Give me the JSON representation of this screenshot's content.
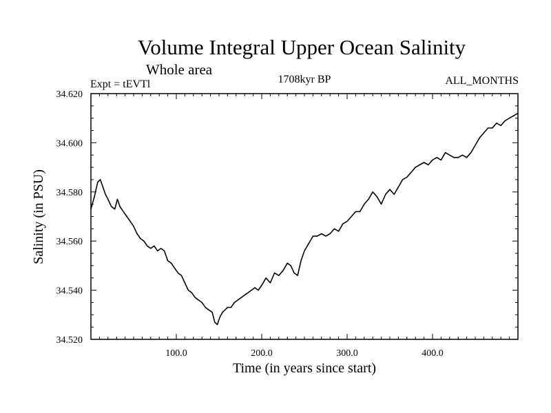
{
  "chart_data": {
    "type": "line",
    "title": "Volume Integral Upper Ocean Salinity",
    "subtitle": "Whole area",
    "left_note": "Expt = tEVTl",
    "center_note": "1708kyr BP",
    "right_note": "ALL_MONTHS",
    "xlabel": "Time (in years since start)",
    "ylabel": "Salinity (in PSU)",
    "xlim": [
      0,
      500
    ],
    "ylim": [
      34.52,
      34.62
    ],
    "xticks": [
      100,
      200,
      300,
      400
    ],
    "xtick_labels": [
      "100.0",
      "200.0",
      "300.0",
      "400.0"
    ],
    "yticks": [
      34.52,
      34.54,
      34.56,
      34.58,
      34.6,
      34.62
    ],
    "ytick_labels": [
      "34.520",
      "34.540",
      "34.560",
      "34.580",
      "34.600",
      "34.620"
    ],
    "grid": false,
    "series": [
      {
        "name": "Salinity",
        "x": [
          0,
          4,
          8,
          11,
          14,
          17,
          20,
          24,
          28,
          31,
          34,
          38,
          42,
          46,
          50,
          54,
          58,
          62,
          66,
          70,
          74,
          78,
          82,
          86,
          90,
          94,
          98,
          102,
          106,
          110,
          114,
          118,
          122,
          126,
          130,
          134,
          138,
          142,
          145,
          148,
          151,
          154,
          157,
          160,
          164,
          168,
          172,
          176,
          180,
          184,
          188,
          192,
          196,
          200,
          205,
          210,
          215,
          220,
          225,
          230,
          234,
          238,
          242,
          246,
          250,
          255,
          260,
          265,
          270,
          275,
          280,
          285,
          290,
          295,
          300,
          305,
          310,
          315,
          320,
          325,
          330,
          335,
          340,
          345,
          350,
          355,
          360,
          365,
          370,
          375,
          380,
          385,
          390,
          395,
          400,
          405,
          410,
          415,
          420,
          425,
          430,
          435,
          440,
          445,
          450,
          455,
          460,
          465,
          470,
          475,
          480,
          485,
          490,
          495,
          500
        ],
        "y": [
          34.573,
          34.578,
          34.584,
          34.585,
          34.582,
          34.579,
          34.577,
          34.574,
          34.573,
          34.577,
          34.574,
          34.572,
          34.57,
          34.568,
          34.566,
          34.563,
          34.561,
          34.56,
          34.558,
          34.557,
          34.558,
          34.556,
          34.557,
          34.556,
          34.552,
          34.551,
          34.549,
          34.547,
          34.546,
          34.543,
          34.54,
          34.539,
          34.537,
          34.536,
          34.535,
          34.533,
          34.532,
          34.531,
          34.527,
          34.526,
          34.529,
          34.531,
          34.532,
          34.533,
          34.533,
          34.535,
          34.536,
          34.537,
          34.538,
          34.539,
          34.54,
          34.541,
          34.54,
          34.542,
          34.545,
          34.543,
          34.547,
          34.546,
          34.548,
          34.551,
          34.55,
          34.547,
          34.546,
          34.552,
          34.556,
          34.559,
          34.562,
          34.562,
          34.563,
          34.562,
          34.563,
          34.565,
          34.564,
          34.567,
          34.568,
          34.57,
          34.572,
          34.572,
          34.575,
          34.577,
          34.58,
          34.578,
          34.575,
          34.579,
          34.581,
          34.579,
          34.582,
          34.585,
          34.586,
          34.588,
          34.59,
          34.591,
          34.592,
          34.591,
          34.593,
          34.594,
          34.593,
          34.596,
          34.595,
          34.594,
          34.594,
          34.595,
          34.594,
          34.596,
          34.599,
          34.602,
          34.604,
          34.606,
          34.606,
          34.608,
          34.607,
          34.609,
          34.61,
          34.611,
          34.612
        ]
      }
    ]
  }
}
